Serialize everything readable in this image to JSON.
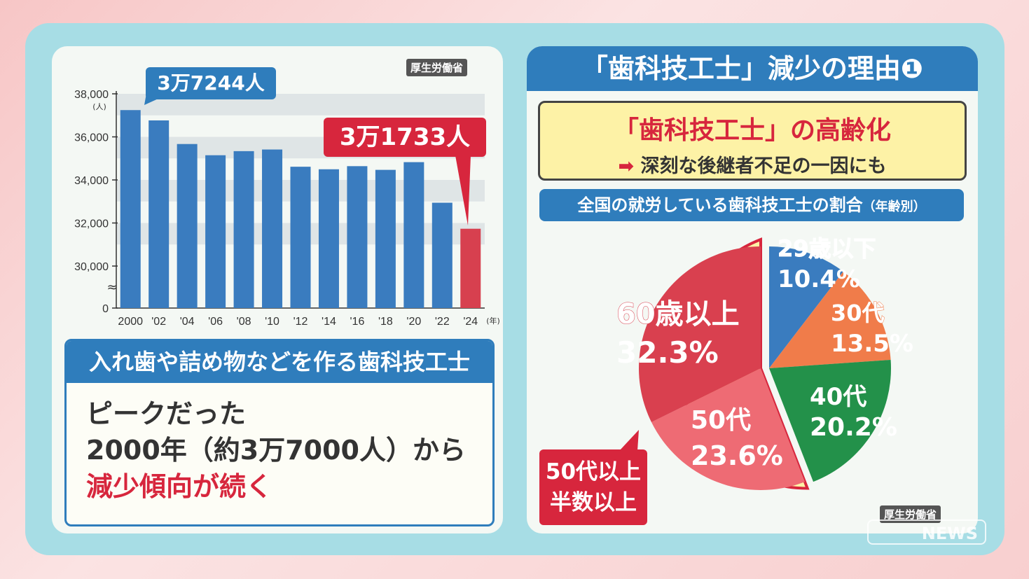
{
  "source_label": "厚生労働省",
  "left": {
    "peak_callout": "3万7244人",
    "latest_callout": "3万1733人",
    "info_heading": "入れ歯や詰め物などを作る歯科技工士",
    "info_line1": "ピークだった",
    "info_line2": "2000年（約3万7000人）から",
    "info_line3": "減少傾向が続く"
  },
  "right": {
    "title": "「歯科技工士」減少の理由❶",
    "highlight_title": "「歯科技工士」の高齢化",
    "highlight_sub": "深刻な後継者不足の一因にも",
    "chart_heading": "全国の就労している歯科技工士の割合",
    "chart_heading_suffix": "（年齢別）",
    "note_line1": "50代以上",
    "note_line2": "半数以上",
    "watermark": "NEWS"
  },
  "colors": {
    "blue": "#2f7dbc",
    "red": "#d7263d",
    "orange": "#f07c4a",
    "green": "#23914a",
    "pink": "#ee6b74",
    "yellow": "#fdf2a6"
  },
  "chart_data": [
    {
      "type": "bar",
      "categories": [
        "2000",
        "'02",
        "'04",
        "'06",
        "'08",
        "'10",
        "'12",
        "'14",
        "'16",
        "'18",
        "'20",
        "'22",
        "'24"
      ],
      "x_unit": "(年)",
      "values": [
        37244,
        36765,
        35668,
        35147,
        35337,
        35413,
        34613,
        34495,
        34640,
        34468,
        34826,
        32942,
        31733
      ],
      "y_unit": "(人)",
      "yticks": [
        "38,000",
        "36,000",
        "34,000",
        "32,000",
        "30,000",
        "0"
      ],
      "ylim": [
        29000,
        38000
      ],
      "axis_break": true,
      "highlight_index": 12,
      "grid": "alternating horizontal bands"
    },
    {
      "type": "pie",
      "labels": [
        "29歳以下",
        "30代",
        "40代",
        "50代",
        "60歳以上"
      ],
      "values": [
        10.4,
        13.5,
        20.2,
        23.6,
        32.3
      ],
      "value_labels": [
        "10.4%",
        "13.5%",
        "20.2%",
        "23.6%",
        "32.3%"
      ],
      "colors": [
        "#3a7cbf",
        "#f07c4a",
        "#23914a",
        "#ee6b74",
        "#d9404f"
      ],
      "exploded": [
        "50代",
        "60歳以上"
      ]
    }
  ]
}
